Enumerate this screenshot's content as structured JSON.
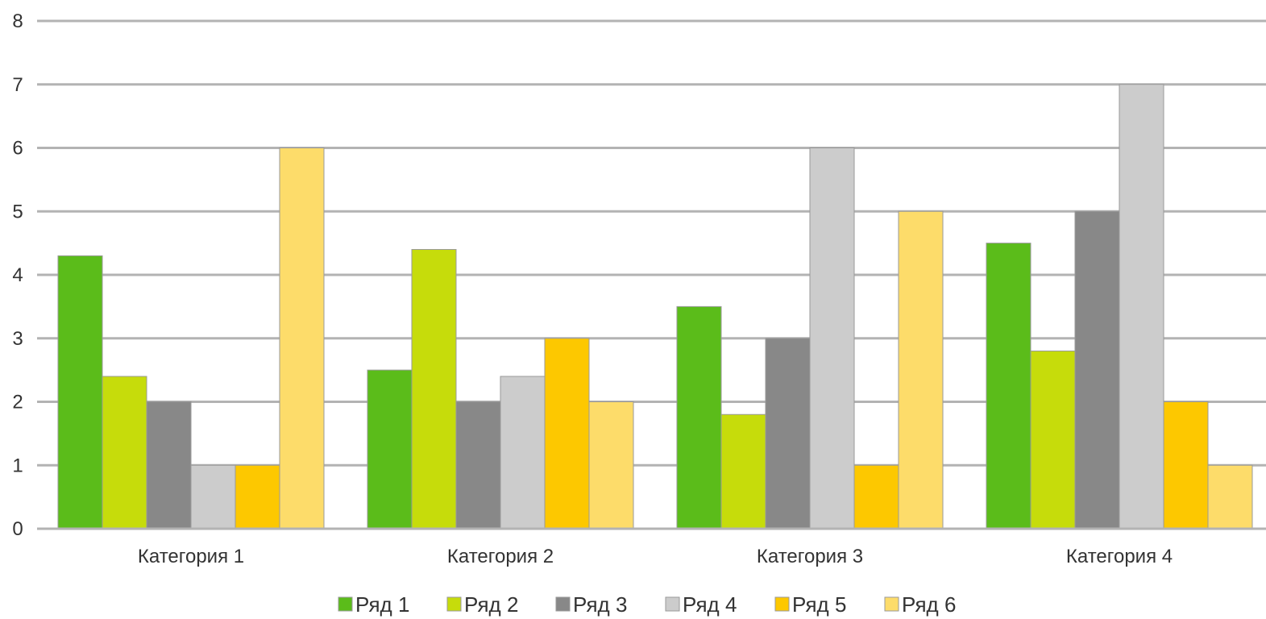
{
  "chart_data": {
    "type": "bar",
    "title": "",
    "xlabel": "",
    "ylabel": "",
    "ylim": [
      0,
      8
    ],
    "yticks": [
      0,
      1,
      2,
      3,
      4,
      5,
      6,
      7,
      8
    ],
    "grid": true,
    "legend_position": "bottom",
    "categories": [
      "Категория 1",
      "Категория 2",
      "Категория 3",
      "Категория 4"
    ],
    "series": [
      {
        "name": "Ряд 1",
        "color": "#5bbc1a",
        "values": [
          4.3,
          2.5,
          3.5,
          4.5
        ]
      },
      {
        "name": "Ряд 2",
        "color": "#c6dc0b",
        "values": [
          2.4,
          4.4,
          1.8,
          2.8
        ]
      },
      {
        "name": "Ряд 3",
        "color": "#888888",
        "values": [
          2,
          2,
          3,
          5
        ]
      },
      {
        "name": "Ряд 4",
        "color": "#cccccc",
        "values": [
          1,
          2.4,
          6,
          7
        ]
      },
      {
        "name": "Ряд 5",
        "color": "#fdc800",
        "values": [
          1,
          3,
          1,
          2
        ]
      },
      {
        "name": "Ряд 6",
        "color": "#fddc6a",
        "values": [
          6,
          2,
          5,
          1
        ]
      }
    ]
  }
}
